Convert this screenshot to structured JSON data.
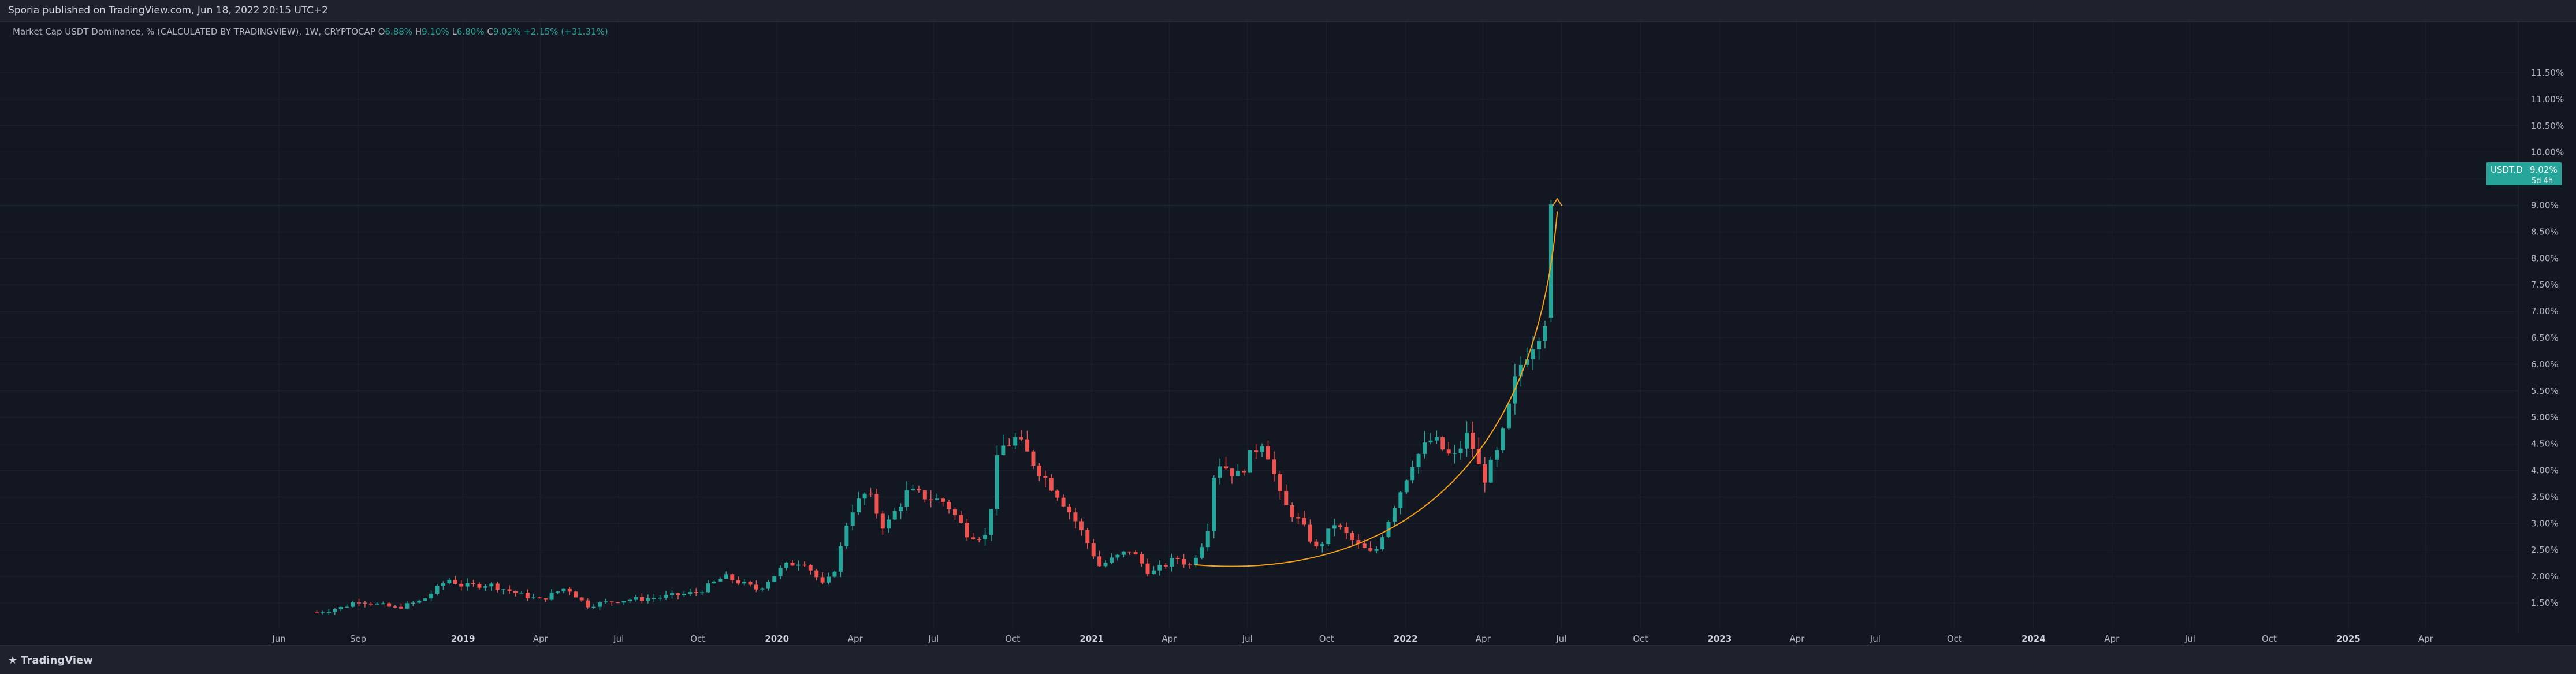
{
  "header": {
    "published": "Sporia published on TradingView.com, Jun 18, 2022 20:15 UTC+2"
  },
  "legend": {
    "title": "Market Cap USDT Dominance, % (CALCULATED BY TRADINGVIEW), 1W, CRYPTOCAP",
    "open_label": "O",
    "open": "6.88%",
    "high_label": "H",
    "high": "9.10%",
    "low_label": "L",
    "low": "6.80%",
    "close_label": "C",
    "close": "9.02%",
    "change": "+2.15% (+31.31%)"
  },
  "price_label": {
    "symbol": "USDT.D",
    "price": "9.02%",
    "countdown": "5d 4h"
  },
  "footer": {
    "brand": "TradingView"
  },
  "colors": {
    "background": "#131722",
    "up": "#26a69a",
    "down": "#ef5350",
    "curve": "#f7a21b",
    "grid": "#1e222d"
  },
  "chart_data": {
    "type": "candlestick",
    "interval": "1W",
    "ylim": [
      1.2,
      11.7
    ],
    "y_ticks": [
      "1.50%",
      "2.00%",
      "2.50%",
      "3.00%",
      "3.50%",
      "4.00%",
      "4.50%",
      "5.00%",
      "5.50%",
      "6.00%",
      "6.50%",
      "7.00%",
      "7.50%",
      "8.00%",
      "8.50%",
      "9.00%",
      "9.50%",
      "10.00%",
      "10.50%",
      "11.00%",
      "11.50%"
    ],
    "x_ticks": [
      "Jun",
      "Sep",
      "2019",
      "Apr",
      "Jul",
      "Oct",
      "2020",
      "Apr",
      "Jul",
      "Oct",
      "2021",
      "Apr",
      "Jul",
      "Oct",
      "2022",
      "Apr",
      "Jul",
      "Oct",
      "2023",
      "Apr",
      "Jul",
      "Oct",
      "2024",
      "Apr",
      "Jul",
      "Oct",
      "2025",
      "Apr"
    ],
    "x_range": [
      "2018-03",
      "2025-08"
    ],
    "last_price": 9.02,
    "keypoints": [
      {
        "date": "2018-07-15",
        "close": 1.32
      },
      {
        "date": "2018-08-15",
        "close": 1.42
      },
      {
        "date": "2018-09-01",
        "close": 1.55
      },
      {
        "date": "2018-10-15",
        "close": 1.4
      },
      {
        "date": "2018-11-15",
        "close": 1.55
      },
      {
        "date": "2018-12-15",
        "close": 1.95
      },
      {
        "date": "2019-01-01",
        "close": 1.82
      },
      {
        "date": "2019-02-01",
        "close": 1.85
      },
      {
        "date": "2019-03-01",
        "close": 1.7
      },
      {
        "date": "2019-04-01",
        "close": 1.55
      },
      {
        "date": "2019-05-01",
        "close": 1.8
      },
      {
        "date": "2019-05-25",
        "close": 1.45
      },
      {
        "date": "2019-07-01",
        "close": 1.55
      },
      {
        "date": "2019-08-15",
        "close": 1.6
      },
      {
        "date": "2019-10-01",
        "close": 1.7
      },
      {
        "date": "2019-11-01",
        "close": 2.0
      },
      {
        "date": "2019-12-10",
        "close": 1.75
      },
      {
        "date": "2020-01-10",
        "close": 2.2
      },
      {
        "date": "2020-02-01",
        "close": 2.3
      },
      {
        "date": "2020-02-25",
        "close": 1.8
      },
      {
        "date": "2020-03-10",
        "close": 2.2
      },
      {
        "date": "2020-03-25",
        "close": 3.2
      },
      {
        "date": "2020-04-15",
        "close": 3.6
      },
      {
        "date": "2020-05-05",
        "close": 2.9
      },
      {
        "date": "2020-06-01",
        "close": 3.6
      },
      {
        "date": "2020-07-15",
        "close": 3.4
      },
      {
        "date": "2020-08-10",
        "close": 2.8
      },
      {
        "date": "2020-09-01",
        "close": 2.75
      },
      {
        "date": "2020-09-15",
        "close": 4.4
      },
      {
        "date": "2020-10-05",
        "close": 4.6
      },
      {
        "date": "2020-11-01",
        "close": 4.0
      },
      {
        "date": "2020-11-25",
        "close": 3.5
      },
      {
        "date": "2020-12-15",
        "close": 3.0
      },
      {
        "date": "2021-01-10",
        "close": 2.2
      },
      {
        "date": "2021-02-15",
        "close": 2.5
      },
      {
        "date": "2021-03-10",
        "close": 2.05
      },
      {
        "date": "2021-04-10",
        "close": 2.35
      },
      {
        "date": "2021-04-25",
        "close": 2.2
      },
      {
        "date": "2021-05-15",
        "close": 2.8
      },
      {
        "date": "2021-05-25",
        "close": 4.2
      },
      {
        "date": "2021-06-20",
        "close": 3.9
      },
      {
        "date": "2021-07-10",
        "close": 4.4
      },
      {
        "date": "2021-07-20",
        "close": 4.6
      },
      {
        "date": "2021-08-10",
        "close": 3.4
      },
      {
        "date": "2021-09-01",
        "close": 3.0
      },
      {
        "date": "2021-09-20",
        "close": 2.5
      },
      {
        "date": "2021-10-10",
        "close": 3.0
      },
      {
        "date": "2021-11-05",
        "close": 2.6
      },
      {
        "date": "2021-11-25",
        "close": 2.4
      },
      {
        "date": "2021-12-15",
        "close": 3.2
      },
      {
        "date": "2022-01-10",
        "close": 4.2
      },
      {
        "date": "2022-02-01",
        "close": 4.6
      },
      {
        "date": "2022-02-25",
        "close": 4.2
      },
      {
        "date": "2022-03-15",
        "close": 4.7
      },
      {
        "date": "2022-04-01",
        "close": 3.8
      },
      {
        "date": "2022-04-20",
        "close": 4.4
      },
      {
        "date": "2022-05-10",
        "close": 5.8
      },
      {
        "date": "2022-05-20",
        "close": 6.2
      },
      {
        "date": "2022-06-01",
        "close": 6.5
      },
      {
        "date": "2022-06-12",
        "close": 6.88
      },
      {
        "date": "2022-06-19",
        "close": 9.02
      }
    ]
  }
}
